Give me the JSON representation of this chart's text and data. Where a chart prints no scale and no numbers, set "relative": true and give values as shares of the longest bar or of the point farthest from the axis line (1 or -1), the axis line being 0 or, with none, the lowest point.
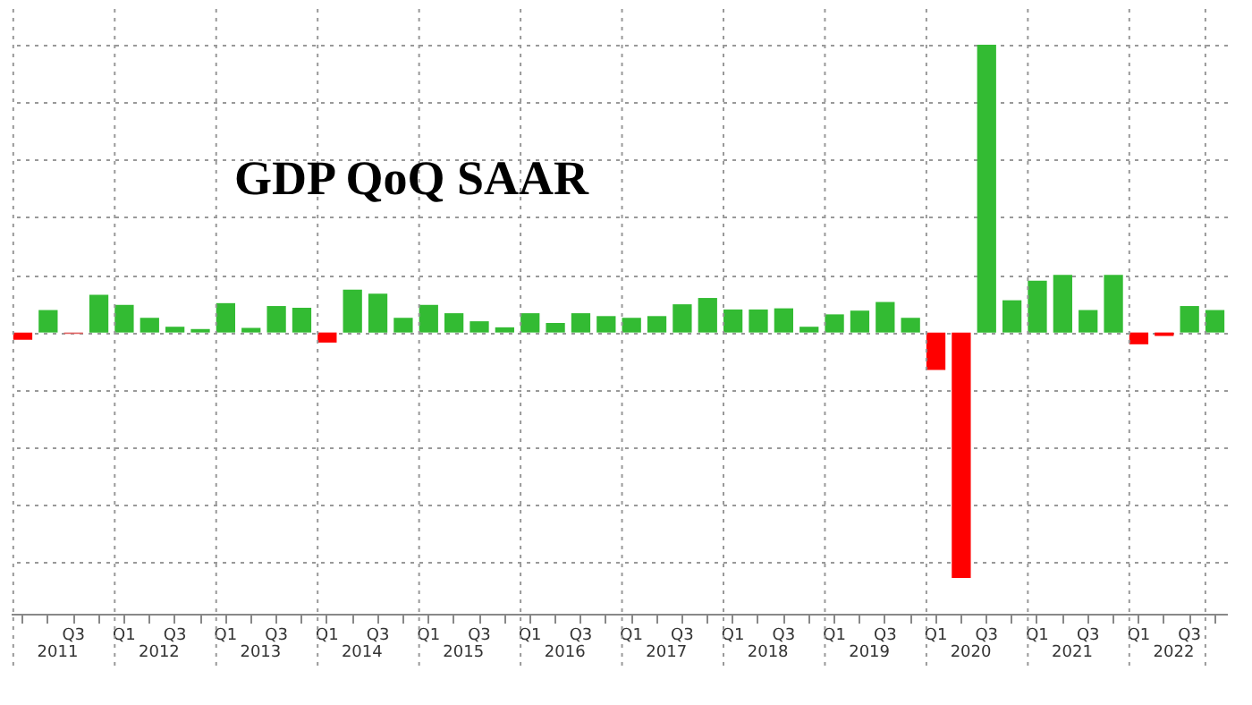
{
  "chart_data": {
    "type": "bar",
    "title": "GDP QoQ SAAR",
    "relative": true,
    "grid": true,
    "categories": [
      null,
      null,
      "Q3",
      null,
      "Q1",
      null,
      "Q3",
      null,
      "Q1",
      null,
      "Q3",
      null,
      "Q1",
      null,
      "Q3",
      null,
      "Q1",
      null,
      "Q3",
      null,
      "Q1",
      null,
      "Q3",
      null,
      "Q1",
      null,
      "Q3",
      null,
      "Q1",
      null,
      "Q3",
      null,
      "Q1",
      null,
      "Q3",
      null,
      "Q1",
      null,
      "Q3",
      null,
      "Q1",
      null,
      "Q3",
      null,
      "Q1",
      null,
      "Q3",
      null
    ],
    "values": [
      -0.025,
      0.078,
      -0.005,
      0.131,
      0.096,
      0.051,
      0.02,
      0.012,
      0.102,
      0.016,
      0.092,
      0.086,
      -0.035,
      0.149,
      0.135,
      0.051,
      0.096,
      0.067,
      0.039,
      0.018,
      0.067,
      0.033,
      0.067,
      0.057,
      0.051,
      0.057,
      0.098,
      0.12,
      0.08,
      0.08,
      0.084,
      0.02,
      0.063,
      0.076,
      0.106,
      0.051,
      -0.13,
      -0.853,
      1,
      0.112,
      0.18,
      0.2,
      0.078,
      0.2,
      -0.041,
      -0.012,
      0.092,
      0.078
    ],
    "colors": [
      "#ff0000",
      "#33bb33",
      "#e06060",
      "#33bb33",
      "#33bb33",
      "#33bb33",
      "#33bb33",
      "#33bb33",
      "#33bb33",
      "#33bb33",
      "#33bb33",
      "#33bb33",
      "#ff0000",
      "#33bb33",
      "#33bb33",
      "#33bb33",
      "#33bb33",
      "#33bb33",
      "#33bb33",
      "#33bb33",
      "#33bb33",
      "#33bb33",
      "#33bb33",
      "#33bb33",
      "#33bb33",
      "#33bb33",
      "#33bb33",
      "#33bb33",
      "#33bb33",
      "#33bb33",
      "#33bb33",
      "#33bb33",
      "#33bb33",
      "#33bb33",
      "#33bb33",
      "#33bb33",
      "#ff0000",
      "#ff0000",
      "#33bb33",
      "#33bb33",
      "#33bb33",
      "#33bb33",
      "#33bb33",
      "#33bb33",
      "#ff0000",
      "#ff0000",
      "#33bb33",
      "#33bb33"
    ],
    "annotations": [
      "2011",
      "2012",
      "2013",
      "2014",
      "2015",
      "2016",
      "2017",
      "2018",
      "2019",
      "2020",
      "2021",
      "2022"
    ]
  }
}
